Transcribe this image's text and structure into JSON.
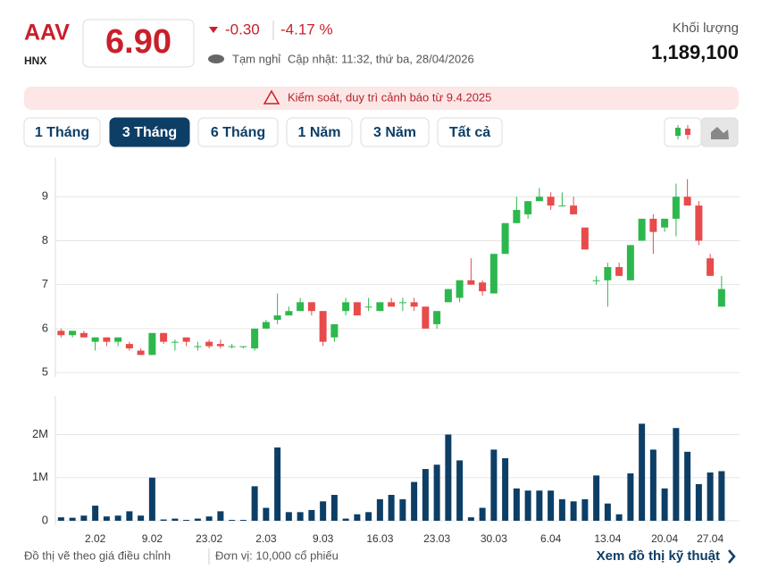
{
  "header": {
    "ticker": "AAV",
    "exchange": "HNX",
    "price": "6.90",
    "change": "-0.30",
    "change_percent": "-4.17 %",
    "status": "Tạm nghỉ",
    "updated": "Cập nhật: 11:32, thứ ba, 28/04/2026",
    "volume_label": "Khối lượng",
    "volume": "1,189,100"
  },
  "alert": "Kiểm soát, duy trì cảnh báo từ 9.4.2025",
  "tabs": [
    "1 Tháng",
    "3 Tháng",
    "6 Tháng",
    "1 Năm",
    "3 Năm",
    "Tất cả"
  ],
  "footer": {
    "note": "Đồ thị vẽ theo giá điều chỉnh",
    "unit": "Đơn vị: 10,000 cổ phiếu",
    "link": "Xem đồ thị kỹ thuật"
  },
  "chart_data": [
    {
      "type": "candlestick",
      "up_color": "#2db84d",
      "down_color": "#e84b4b",
      "grid": true,
      "ylim": [
        4.9,
        9.9
      ],
      "yticks": [
        5,
        6,
        7,
        8,
        9
      ],
      "open": [
        5.95,
        5.85,
        5.9,
        5.7,
        5.8,
        5.7,
        5.65,
        5.5,
        5.4,
        5.9,
        5.7,
        5.8,
        5.6,
        5.7,
        5.65,
        5.6,
        5.6,
        5.55,
        6.0,
        6.2,
        6.3,
        6.4,
        6.6,
        6.4,
        5.8,
        6.4,
        6.6,
        6.5,
        6.4,
        6.6,
        6.6,
        6.6,
        6.5,
        6.1,
        6.6,
        6.7,
        7.1,
        7.05,
        6.8,
        7.7,
        8.4,
        8.6,
        8.9,
        9.0,
        8.8,
        8.8,
        8.3,
        7.1,
        7.1,
        7.4,
        7.1,
        8.0,
        8.5,
        8.3,
        8.5,
        9.0,
        8.8,
        7.6,
        6.5
      ],
      "high": [
        6.0,
        5.95,
        5.95,
        5.8,
        5.8,
        5.8,
        5.7,
        5.55,
        5.9,
        5.9,
        5.75,
        5.8,
        5.7,
        5.75,
        5.75,
        5.65,
        5.6,
        6.0,
        6.2,
        6.8,
        6.5,
        6.7,
        6.6,
        6.4,
        6.1,
        6.7,
        6.6,
        6.7,
        6.6,
        6.7,
        6.7,
        6.7,
        6.5,
        6.4,
        6.9,
        7.1,
        7.6,
        7.1,
        7.7,
        8.4,
        9.0,
        8.9,
        9.2,
        9.1,
        9.1,
        9.0,
        8.3,
        7.2,
        7.5,
        7.5,
        7.9,
        8.5,
        8.6,
        8.5,
        9.3,
        9.4,
        8.9,
        7.7,
        7.2
      ],
      "low": [
        5.8,
        5.8,
        5.8,
        5.5,
        5.6,
        5.6,
        5.5,
        5.4,
        5.4,
        5.65,
        5.5,
        5.6,
        5.5,
        5.55,
        5.55,
        5.55,
        5.55,
        5.5,
        6.0,
        6.1,
        6.3,
        6.4,
        6.3,
        5.6,
        5.7,
        6.3,
        6.3,
        6.4,
        6.4,
        6.5,
        6.4,
        6.4,
        6.0,
        6.0,
        6.6,
        6.6,
        7.0,
        6.75,
        6.8,
        7.7,
        8.4,
        8.5,
        8.9,
        8.7,
        8.8,
        8.6,
        7.8,
        7.0,
        6.5,
        7.2,
        7.1,
        8.0,
        7.7,
        8.2,
        8.1,
        8.8,
        7.9,
        7.2,
        6.5
      ],
      "close": [
        5.85,
        5.95,
        5.8,
        5.8,
        5.7,
        5.8,
        5.55,
        5.4,
        5.9,
        5.7,
        5.7,
        5.7,
        5.6,
        5.6,
        5.6,
        5.6,
        5.6,
        6.0,
        6.15,
        6.3,
        6.4,
        6.6,
        6.4,
        5.7,
        6.1,
        6.6,
        6.3,
        6.5,
        6.6,
        6.5,
        6.6,
        6.5,
        6.0,
        6.4,
        6.9,
        7.1,
        7.0,
        6.85,
        7.7,
        8.4,
        8.7,
        8.9,
        9.0,
        8.8,
        8.8,
        8.6,
        7.8,
        7.1,
        7.4,
        7.2,
        7.9,
        8.5,
        8.2,
        8.5,
        9.0,
        8.8,
        8.0,
        7.2,
        6.9
      ]
    },
    {
      "type": "bar",
      "color": "#0d3e66",
      "grid": true,
      "ylim": [
        0,
        2900000
      ],
      "yticks": [
        0,
        {
          "value": 1000000,
          "label": "1M"
        },
        {
          "value": 2000000,
          "label": "2M"
        }
      ],
      "categories": [
        null,
        null,
        null,
        "2.02",
        null,
        null,
        null,
        null,
        "9.02",
        null,
        null,
        null,
        null,
        "23.02",
        null,
        null,
        null,
        null,
        "2.03",
        null,
        null,
        null,
        null,
        "9.03",
        null,
        null,
        null,
        null,
        "16.03",
        null,
        null,
        null,
        null,
        "23.03",
        null,
        null,
        null,
        null,
        "30.03",
        null,
        null,
        null,
        null,
        "6.04",
        null,
        null,
        null,
        null,
        "13.04",
        null,
        null,
        null,
        null,
        "20.04",
        null,
        null,
        null,
        "27.04",
        null
      ],
      "values": [
        80000,
        70000,
        120000,
        350000,
        100000,
        120000,
        220000,
        120000,
        1000000,
        30000,
        50000,
        20000,
        50000,
        100000,
        220000,
        20000,
        20000,
        800000,
        300000,
        1700000,
        200000,
        200000,
        250000,
        450000,
        600000,
        50000,
        150000,
        200000,
        500000,
        600000,
        500000,
        900000,
        1200000,
        1300000,
        2000000,
        1400000,
        80000,
        300000,
        1650000,
        1450000,
        750000,
        700000,
        700000,
        700000,
        500000,
        450000,
        500000,
        1050000,
        400000,
        150000,
        1100000,
        2250000,
        1650000,
        750000,
        2150000,
        1600000,
        850000,
        1120000,
        1150000
      ]
    }
  ]
}
